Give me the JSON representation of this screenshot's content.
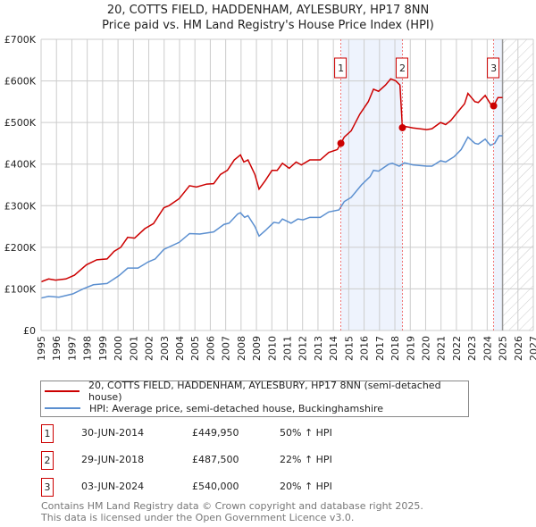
{
  "title": "20, COTTS FIELD, HADDENHAM, AYLESBURY, HP17 8NN",
  "subtitle": "Price paid vs. HM Land Registry's House Price Index (HPI)",
  "colors": {
    "property": "#cc0000",
    "hpi": "#5b8fd0",
    "shade": "#eef3fd"
  },
  "chart_data": {
    "type": "line",
    "xlim": [
      1995,
      2027
    ],
    "ylim": [
      0,
      700000
    ],
    "xticks": [
      "1995",
      "1996",
      "1997",
      "1998",
      "1999",
      "2000",
      "2001",
      "2002",
      "2003",
      "2004",
      "2005",
      "2006",
      "2007",
      "2008",
      "2009",
      "2010",
      "2011",
      "2012",
      "2013",
      "2014",
      "2015",
      "2016",
      "2017",
      "2018",
      "2019",
      "2020",
      "2021",
      "2022",
      "2023",
      "2024",
      "2025",
      "2026",
      "2027"
    ],
    "yticks": [
      {
        "v": 0,
        "label": "£0"
      },
      {
        "v": 100000,
        "label": "£100K"
      },
      {
        "v": 200000,
        "label": "£200K"
      },
      {
        "v": 300000,
        "label": "£300K"
      },
      {
        "v": 400000,
        "label": "£400K"
      },
      {
        "v": 500000,
        "label": "£500K"
      },
      {
        "v": 600000,
        "label": "£600K"
      },
      {
        "v": 700000,
        "label": "£700K"
      }
    ],
    "shaded_ranges": [
      [
        2014.49,
        2018.49
      ],
      [
        2024.42,
        2025.0
      ]
    ],
    "forecast_hatch": [
      2025.0,
      2027
    ],
    "series": [
      {
        "name": "20, COTTS FIELD, HADDENHAM, AYLESBURY, HP17 8NN (semi-detached house)",
        "x": [
          1995.0,
          1995.49,
          1995.94,
          1996.61,
          1997.17,
          1997.95,
          1998.62,
          1999.29,
          1999.74,
          2000.18,
          2000.63,
          2001.08,
          2001.75,
          2002.31,
          2002.98,
          2003.31,
          2003.98,
          2004.65,
          2005.1,
          2005.77,
          2006.22,
          2006.66,
          2007.11,
          2007.56,
          2007.96,
          2008.18,
          2008.45,
          2008.9,
          2009.17,
          2009.57,
          2010.01,
          2010.35,
          2010.69,
          2011.13,
          2011.58,
          2011.92,
          2012.47,
          2013.15,
          2013.7,
          2014.26,
          2014.49,
          2014.71,
          2015.16,
          2015.72,
          2016.27,
          2016.61,
          2016.94,
          2017.39,
          2017.73,
          2018.06,
          2018.33,
          2018.49,
          2018.73,
          2019.18,
          2020.07,
          2020.41,
          2020.97,
          2021.3,
          2021.64,
          2022.08,
          2022.53,
          2022.75,
          2023.2,
          2023.42,
          2023.87,
          2024.21,
          2024.42,
          2024.7,
          2025.0
        ],
        "y": [
          117000,
          124000,
          121000,
          124000,
          133000,
          158000,
          170000,
          172000,
          190000,
          200000,
          224000,
          222000,
          245000,
          257000,
          295000,
          300000,
          317000,
          348000,
          345000,
          352000,
          353000,
          375000,
          385000,
          410000,
          422000,
          405000,
          410000,
          375000,
          340000,
          360000,
          385000,
          385000,
          402000,
          390000,
          405000,
          398000,
          410000,
          410000,
          428000,
          435000,
          449950,
          465000,
          480000,
          520000,
          550000,
          580000,
          575000,
          590000,
          605000,
          600000,
          590000,
          487500,
          490000,
          487000,
          483000,
          485000,
          500000,
          495000,
          505000,
          525000,
          545000,
          570000,
          550000,
          548000,
          565000,
          545000,
          540000,
          560000,
          560000
        ]
      },
      {
        "name": "HPI: Average price, semi-detached house, Buckinghamshire",
        "x": [
          1995.0,
          1995.49,
          1996.16,
          1997.06,
          1997.73,
          1998.4,
          1999.29,
          2000.07,
          2000.63,
          2001.3,
          2001.97,
          2002.42,
          2002.98,
          2003.98,
          2004.65,
          2005.32,
          2006.22,
          2006.89,
          2007.22,
          2007.78,
          2007.96,
          2008.23,
          2008.45,
          2008.9,
          2009.17,
          2009.57,
          2010.13,
          2010.46,
          2010.69,
          2011.25,
          2011.69,
          2012.03,
          2012.47,
          2013.15,
          2013.7,
          2014.37,
          2014.71,
          2015.16,
          2015.83,
          2016.39,
          2016.61,
          2016.94,
          2017.61,
          2017.84,
          2018.28,
          2018.62,
          2019.18,
          2020.07,
          2020.41,
          2020.97,
          2021.3,
          2021.86,
          2022.31,
          2022.75,
          2023.2,
          2023.42,
          2023.87,
          2024.21,
          2024.49,
          2024.77,
          2025.0
        ],
        "y": [
          78000,
          82000,
          80000,
          88000,
          100000,
          110000,
          113000,
          132000,
          150000,
          150000,
          165000,
          172000,
          195000,
          212000,
          233000,
          232000,
          237000,
          255000,
          258000,
          280000,
          283000,
          272000,
          276000,
          250000,
          227000,
          240000,
          260000,
          258000,
          268000,
          258000,
          268000,
          266000,
          272000,
          272000,
          285000,
          290000,
          310000,
          320000,
          350000,
          370000,
          385000,
          383000,
          400000,
          402000,
          395000,
          403000,
          398000,
          395000,
          395000,
          408000,
          405000,
          418000,
          435000,
          465000,
          450000,
          448000,
          460000,
          445000,
          450000,
          468000,
          468000
        ]
      }
    ],
    "sales": [
      {
        "label": "1",
        "x": 2014.49,
        "y": 449950
      },
      {
        "label": "2",
        "x": 2018.49,
        "y": 487500
      },
      {
        "label": "3",
        "x": 2024.42,
        "y": 540000
      }
    ]
  },
  "legend": {
    "property": "20, COTTS FIELD, HADDENHAM, AYLESBURY, HP17 8NN (semi-detached house)",
    "hpi": "HPI: Average price, semi-detached house, Buckinghamshire"
  },
  "transactions": [
    {
      "num": "1",
      "date": "30-JUN-2014",
      "price": "£449,950",
      "hpi": "50% ↑ HPI"
    },
    {
      "num": "2",
      "date": "29-JUN-2018",
      "price": "£487,500",
      "hpi": "22% ↑ HPI"
    },
    {
      "num": "3",
      "date": "03-JUN-2024",
      "price": "£540,000",
      "hpi": "20% ↑ HPI"
    }
  ],
  "footer": {
    "line1": "Contains HM Land Registry data © Crown copyright and database right 2025.",
    "line2": "This data is licensed under the Open Government Licence v3.0."
  }
}
